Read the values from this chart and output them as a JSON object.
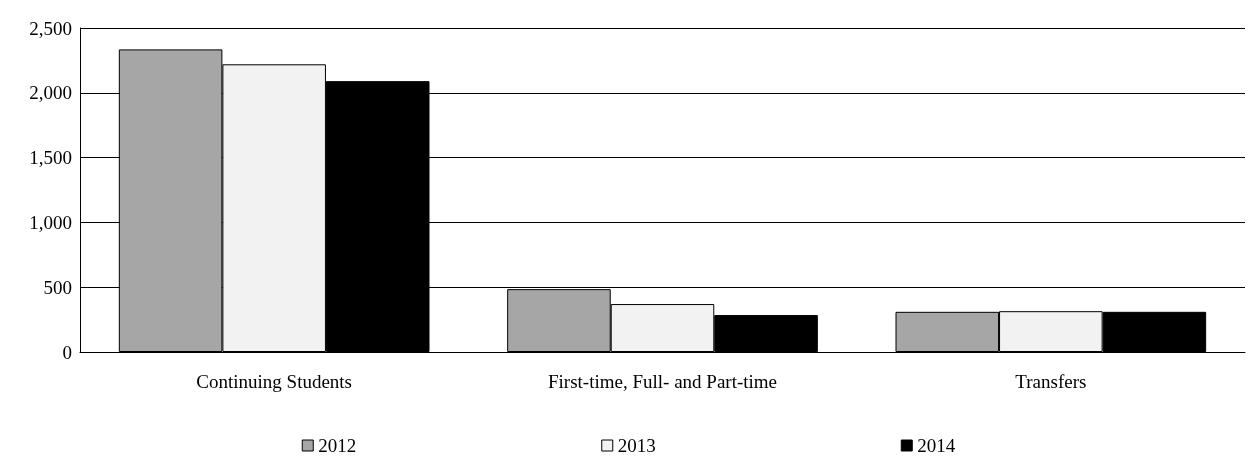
{
  "chart_data": {
    "type": "bar",
    "categories": [
      "Continuing Students",
      "First-time, Full- and Part-time",
      "Transfers"
    ],
    "series": [
      {
        "name": "2012",
        "color": "#a6a6a6",
        "values": [
          2335,
          485,
          310
        ]
      },
      {
        "name": "2013",
        "color": "#f2f2f2",
        "values": [
          2220,
          370,
          315
        ]
      },
      {
        "name": "2014",
        "color": "#000000",
        "values": [
          2090,
          285,
          310
        ]
      }
    ],
    "ylim": [
      0,
      2500
    ],
    "yticks": [
      0,
      500,
      {
        "value": 1000,
        "label": "1,000"
      },
      {
        "value": 1500,
        "label": "1,500"
      },
      {
        "value": 2000,
        "label": "2,000"
      },
      {
        "value": 2500,
        "label": "2,500"
      }
    ],
    "grid": "y",
    "legend": "bottom"
  }
}
